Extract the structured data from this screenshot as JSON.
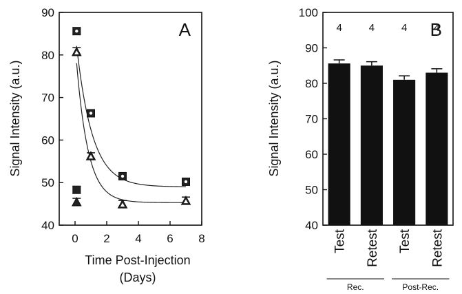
{
  "chart_data": [
    {
      "panel": "A",
      "type": "scatter",
      "xlabel": [
        "Time Post-Injection",
        "(Days)"
      ],
      "ylabel": "Signal Intensity (a.u.)",
      "xlim": [
        -1,
        8
      ],
      "ylim": [
        40,
        90
      ],
      "xticks": [
        "0",
        "2",
        "4",
        "6",
        "8"
      ],
      "yticks": [
        "40",
        "50",
        "60",
        "70",
        "80",
        "90"
      ],
      "series": [
        {
          "marker": "square-open",
          "points": [
            {
              "x": 0.1,
              "y": 85.6,
              "err": 0.8
            },
            {
              "x": 1,
              "y": 66.3,
              "err": 0.8
            },
            {
              "x": 3,
              "y": 51.5,
              "err": 0.7
            },
            {
              "x": 7,
              "y": 50.2,
              "err": 0.7
            }
          ],
          "fit": {
            "y0": 49,
            "a": 36.6,
            "k": 1.0
          }
        },
        {
          "marker": "triangle-open",
          "points": [
            {
              "x": 0.1,
              "y": 80.8,
              "err": 0.9
            },
            {
              "x": 1,
              "y": 56.3,
              "err": 0.7
            },
            {
              "x": 3,
              "y": 45.0,
              "err": 0.8
            },
            {
              "x": 7,
              "y": 45.8,
              "err": 0.8
            }
          ],
          "fit": {
            "y0": 45.3,
            "a": 37.5,
            "k": 1.35
          }
        },
        {
          "marker": "square-filled",
          "points": [
            {
              "x": 0.1,
              "y": 48.3,
              "err": 0.8
            }
          ]
        },
        {
          "marker": "triangle-filled",
          "points": [
            {
              "x": 0.1,
              "y": 45.5,
              "err": 0.8
            }
          ]
        }
      ]
    },
    {
      "panel": "B",
      "type": "bar",
      "ylabel": "Signal Intensity (a.u.)",
      "ylim": [
        40,
        100
      ],
      "yticks": [
        "40",
        "50",
        "60",
        "70",
        "80",
        "90",
        "100"
      ],
      "categories": [
        "Test",
        "Retest",
        "Test",
        "Retest"
      ],
      "values": [
        85.6,
        85.0,
        81.0,
        83.0
      ],
      "errors": [
        1.0,
        1.1,
        1.1,
        1.1
      ],
      "n_labels": [
        "4",
        "4",
        "4",
        "4"
      ],
      "groups": [
        {
          "label": "Rec.",
          "categories": [
            0,
            1
          ]
        },
        {
          "label": "Post-Rec.",
          "categories": [
            2,
            3
          ]
        }
      ]
    }
  ]
}
